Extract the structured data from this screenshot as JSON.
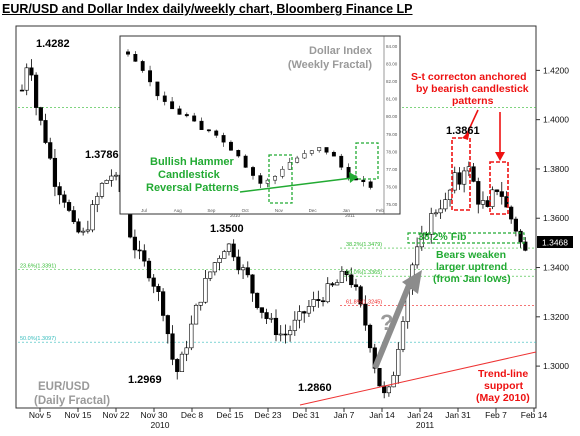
{
  "title": "EUR/USD  and Dollar Index daily/weekly chart, Bloomberg Finance LP",
  "chart_data": {
    "type": "candlestick",
    "series_label": "EUR/USD\n(Daily Fractal)",
    "yaxis": {
      "ticks": [
        "1.4200",
        "1.4000",
        "1.3800",
        "1.3600",
        "1.3400",
        "1.3200",
        "1.3000"
      ],
      "ylim": [
        1.283,
        1.438
      ],
      "current_price": "1.3468"
    },
    "xaxis": {
      "ticks": [
        "Nov 5",
        "Nov 15",
        "Nov 22",
        "Nov 30",
        "Dec 8",
        "Dec 15",
        "Dec 23",
        "Dec 31",
        "Jan 7",
        "Jan 14",
        "Jan 24",
        "Jan 31",
        "Feb 7",
        "Feb 14"
      ],
      "years": [
        "2010",
        "2011"
      ]
    },
    "path": [
      [
        0,
        1.412
      ],
      [
        3,
        1.428
      ],
      [
        6,
        1.405
      ],
      [
        10,
        1.392
      ],
      [
        14,
        1.375
      ],
      [
        18,
        1.368
      ],
      [
        22,
        1.355
      ],
      [
        26,
        1.353
      ],
      [
        30,
        1.364
      ],
      [
        34,
        1.374
      ],
      [
        38,
        1.378
      ],
      [
        42,
        1.37
      ],
      [
        46,
        1.352
      ],
      [
        50,
        1.343
      ],
      [
        54,
        1.338
      ],
      [
        57,
        1.33
      ],
      [
        60,
        1.322
      ],
      [
        62,
        1.31
      ],
      [
        64,
        1.3
      ],
      [
        66,
        1.297
      ],
      [
        68,
        1.305
      ],
      [
        71,
        1.315
      ],
      [
        74,
        1.325
      ],
      [
        77,
        1.333
      ],
      [
        80,
        1.34
      ],
      [
        83,
        1.345
      ],
      [
        86,
        1.35
      ],
      [
        89,
        1.347
      ],
      [
        92,
        1.34
      ],
      [
        95,
        1.336
      ],
      [
        98,
        1.328
      ],
      [
        101,
        1.323
      ],
      [
        104,
        1.318
      ],
      [
        107,
        1.315
      ],
      [
        110,
        1.312
      ],
      [
        113,
        1.315
      ],
      [
        116,
        1.318
      ],
      [
        119,
        1.322
      ],
      [
        122,
        1.325
      ],
      [
        125,
        1.327
      ],
      [
        128,
        1.33
      ],
      [
        131,
        1.332
      ],
      [
        134,
        1.335
      ],
      [
        137,
        1.338
      ],
      [
        140,
        1.332
      ],
      [
        143,
        1.322
      ],
      [
        146,
        1.313
      ],
      [
        148,
        1.303
      ],
      [
        150,
        1.295
      ],
      [
        152,
        1.288
      ],
      [
        154,
        1.287
      ],
      [
        156,
        1.295
      ],
      [
        158,
        1.306
      ],
      [
        160,
        1.318
      ],
      [
        162,
        1.33
      ],
      [
        164,
        1.34
      ],
      [
        166,
        1.345
      ],
      [
        168,
        1.35
      ],
      [
        170,
        1.355
      ],
      [
        172,
        1.36
      ],
      [
        174,
        1.363
      ],
      [
        176,
        1.366
      ],
      [
        178,
        1.365
      ],
      [
        180,
        1.37
      ],
      [
        182,
        1.376
      ],
      [
        184,
        1.374
      ],
      [
        186,
        1.38
      ],
      [
        187,
        1.386
      ],
      [
        188,
        1.38
      ],
      [
        190,
        1.375
      ],
      [
        192,
        1.368
      ],
      [
        194,
        1.366
      ],
      [
        196,
        1.362
      ],
      [
        198,
        1.369
      ],
      [
        200,
        1.372
      ],
      [
        201,
        1.375
      ],
      [
        202,
        1.37
      ],
      [
        204,
        1.364
      ],
      [
        206,
        1.36
      ],
      [
        208,
        1.356
      ],
      [
        210,
        1.35
      ],
      [
        212,
        1.346
      ]
    ],
    "annotations": [
      {
        "id": "high_1",
        "text": "1.4282",
        "color": "black"
      },
      {
        "id": "high_2",
        "text": "1.3786",
        "color": "black"
      },
      {
        "id": "high_3",
        "text": "1.3500",
        "color": "black"
      },
      {
        "id": "low_1",
        "text": "1.2969",
        "color": "black"
      },
      {
        "id": "low_2",
        "text": "1.2860",
        "color": "black"
      },
      {
        "id": "high_4",
        "text": "1.3861",
        "color": "black"
      },
      {
        "id": "fib",
        "text": "38.2% Fib",
        "color": "green"
      },
      {
        "id": "bears",
        "text": "Bears weaken\nlarger uptrend\n(from Jan lows)",
        "color": "green"
      },
      {
        "id": "sterm",
        "text": "S-t correcton anchored\nby bearish candlestick\npatterns",
        "color": "red"
      },
      {
        "id": "trend",
        "text": "Trend-line\nsupport\n(May 2010)",
        "color": "red"
      },
      {
        "id": "qmark",
        "text": "?",
        "color": "gray"
      }
    ],
    "fib_labels": [
      {
        "text": "38.2%(1.3479)",
        "color": "#33bb33"
      },
      {
        "text": "23.6%(1.3391)",
        "color": "#33bb33"
      },
      {
        "text": "50.0%(1.3365)",
        "color": "#33bb33"
      },
      {
        "text": "61.8%(1.3245)",
        "color": "#ee2222"
      },
      {
        "text": "50.0%(1.3097)",
        "color": "#33bbbb"
      }
    ],
    "inset": {
      "title": "Dollar Index\n(Weekly Fractal)",
      "note": "Bullish Hammer\nCandlestick\nReversal Patterns",
      "axis_labels": [
        "84.00",
        "83.00",
        "82.00",
        "81.00",
        "80.00",
        "79.00",
        "78.00",
        "77.00",
        "76.00",
        "75.00"
      ],
      "month_labels": [
        "Jul",
        "Aug",
        "Sep",
        "Oct",
        "Nov",
        "Dec",
        "Jan",
        "Feb"
      ],
      "year_labels": [
        "2010",
        "2011"
      ],
      "path": [
        [
          0,
          0.93
        ],
        [
          4,
          0.86
        ],
        [
          8,
          0.72
        ],
        [
          12,
          0.62
        ],
        [
          16,
          0.57
        ],
        [
          20,
          0.54
        ],
        [
          24,
          0.46
        ],
        [
          28,
          0.47
        ],
        [
          32,
          0.38
        ],
        [
          36,
          0.33
        ],
        [
          40,
          0.22
        ],
        [
          44,
          0.14
        ],
        [
          48,
          0.18
        ],
        [
          52,
          0.26
        ],
        [
          56,
          0.3
        ],
        [
          60,
          0.33
        ],
        [
          64,
          0.36
        ],
        [
          68,
          0.3
        ],
        [
          72,
          0.2
        ],
        [
          76,
          0.15
        ],
        [
          80,
          0.13
        ]
      ]
    }
  }
}
